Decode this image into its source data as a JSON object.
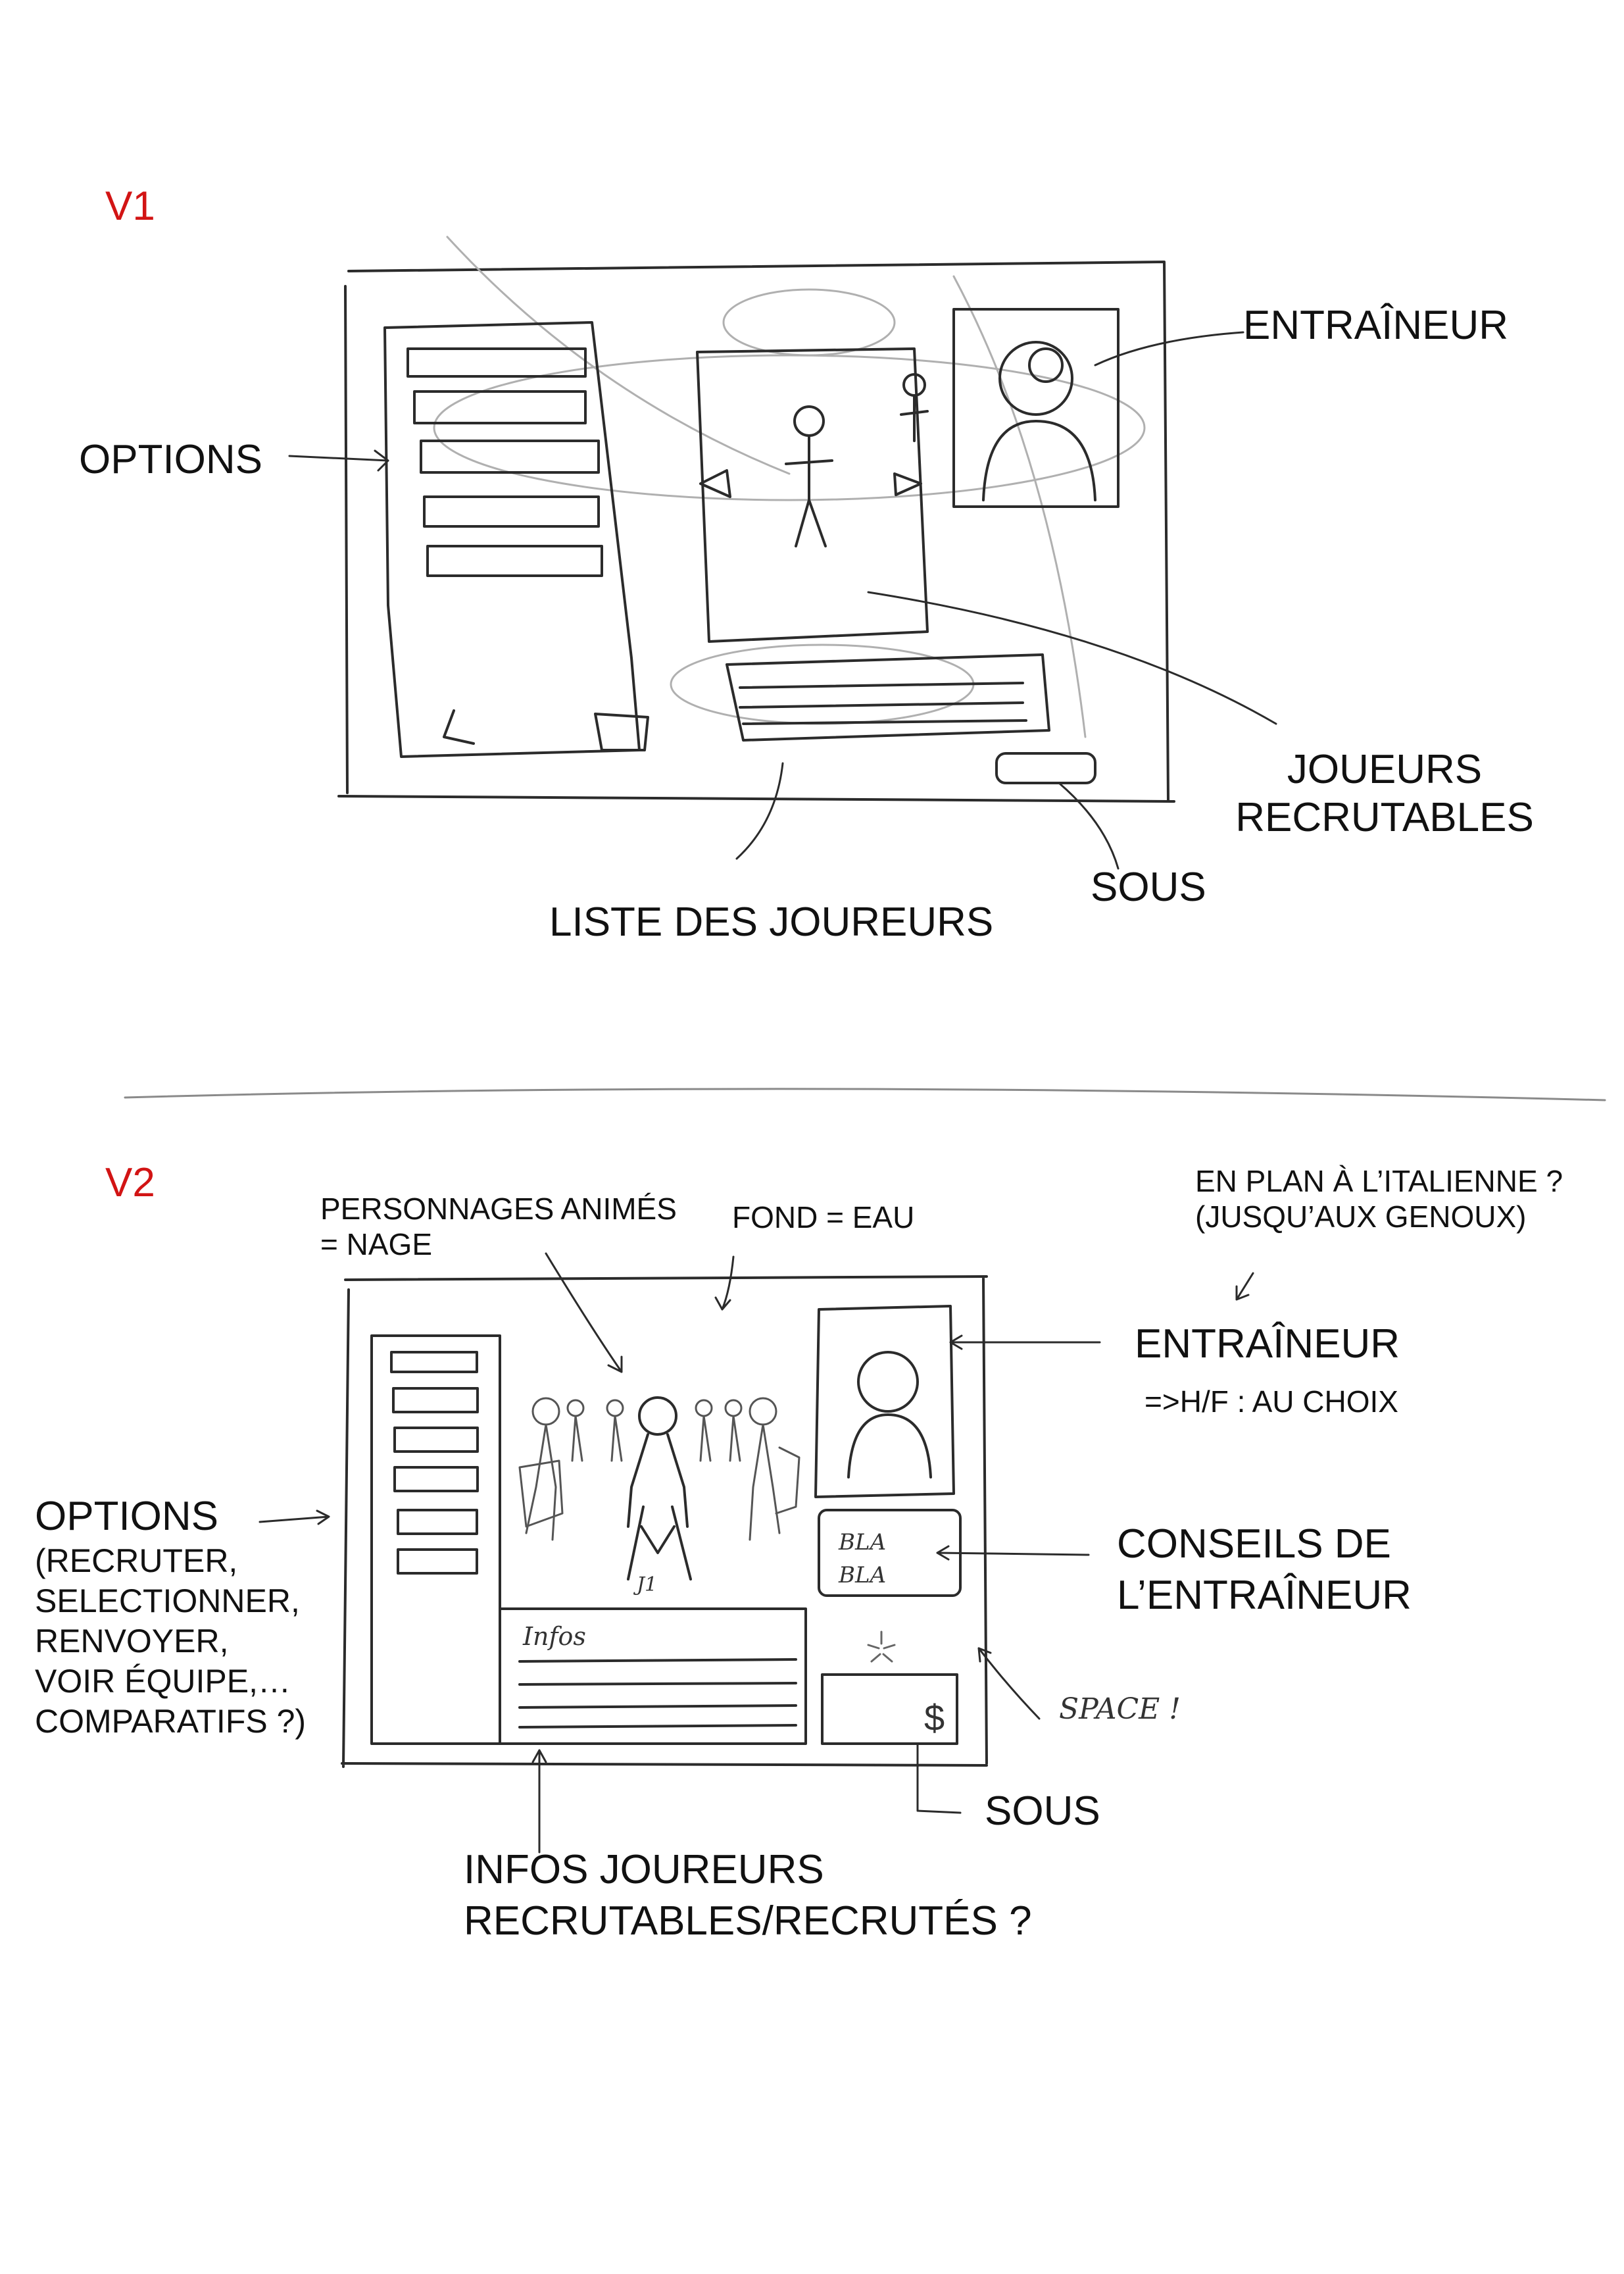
{
  "v1": {
    "version_label": "V1",
    "labels": {
      "coach": "ENTRAÎNEUR",
      "options": "OPTIONS",
      "recruitable_players": [
        "JOUEURS",
        "RECRUTABLES"
      ],
      "money": "SOUS",
      "player_list": "LISTE DES JOUREURS"
    }
  },
  "v2": {
    "version_label": "V2",
    "labels": {
      "animated_characters": [
        "PERSONNAGES ANIMÉS",
        "= NAGE"
      ],
      "background": "FOND = EAU",
      "shot_question": [
        "EN PLAN À L’ITALIENNE ?",
        "(JUSQU’AUX GENOUX)"
      ],
      "coach": "ENTRAÎNEUR",
      "coach_gender": "=>H/F : AU CHOIX",
      "options": "OPTIONS",
      "options_list": [
        "(RECRUTER,",
        "SELECTIONNER,",
        "RENVOYER,",
        "VOIR ÉQUIPE,…",
        "COMPARATIFS ?)"
      ],
      "coach_advice": [
        "CONSEILS DE",
        "L’ENTRAÎNEUR"
      ],
      "money": "SOUS",
      "player_info": [
        "INFOS JOUREURS",
        "RECRUTABLES/RECRUTÉS ?"
      ]
    },
    "sketch_text": {
      "player_tag": "J1",
      "bubble": [
        "BLA",
        "BLA"
      ],
      "infos_header": "Infos",
      "space_key": "SPACE !",
      "dollar": "$"
    }
  }
}
